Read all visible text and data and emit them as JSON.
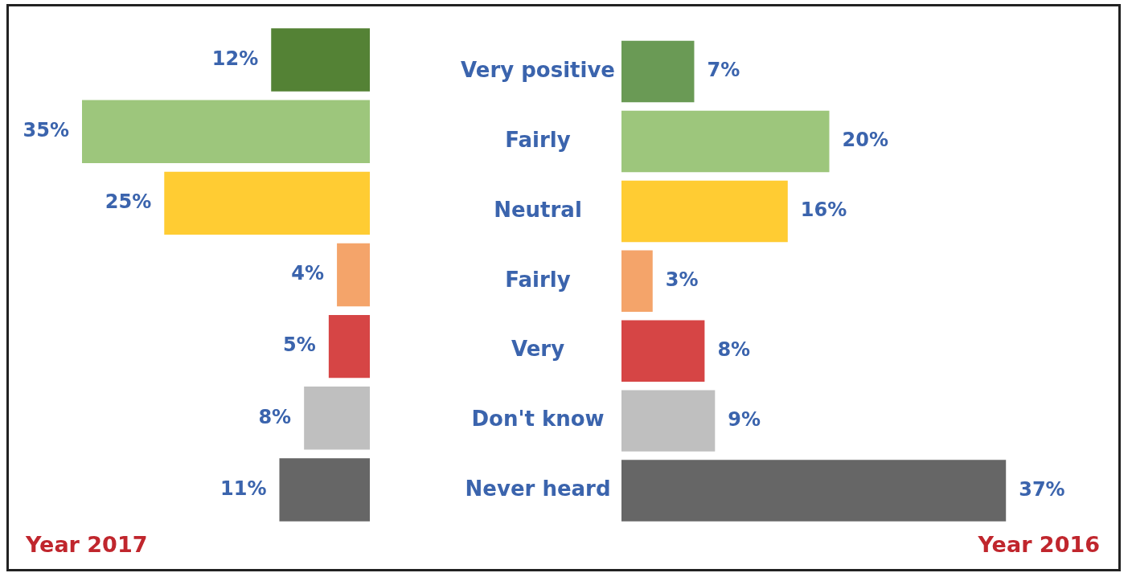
{
  "chart_data": [
    {
      "type": "bar",
      "orientation": "horizontal",
      "xlabel": "Year 2017",
      "tick_labels": false,
      "categories": [
        "Very positive",
        "Fairly",
        "Neutral",
        "Fairly",
        "Very",
        "Don't know",
        "Never heard"
      ],
      "values": [
        12,
        35,
        25,
        4,
        5,
        8,
        11
      ],
      "value_labels": [
        "12%",
        "35%",
        "25%",
        "4%",
        "5%",
        "8%",
        "11%"
      ],
      "colors": [
        "#548235",
        "#9dc67c",
        "#ffcc33",
        "#f4a46a",
        "#d64545",
        "#bfbfbf",
        "#666666"
      ]
    },
    {
      "type": "bar",
      "orientation": "horizontal",
      "xlabel": "Year 2016",
      "tick_labels": "y",
      "categories": [
        "Very positive",
        "Fairly",
        "Neutral",
        "Fairly",
        "Very",
        "Don't know",
        "Never heard"
      ],
      "values": [
        7,
        20,
        16,
        3,
        8,
        9,
        37
      ],
      "value_labels": [
        "7%",
        "20%",
        "16%",
        "3%",
        "8%",
        "9%",
        "37%"
      ],
      "colors": [
        "#6a9a55",
        "#9dc67c",
        "#ffcc33",
        "#f4a46a",
        "#d64545",
        "#bfbfbf",
        "#666666"
      ]
    }
  ]
}
